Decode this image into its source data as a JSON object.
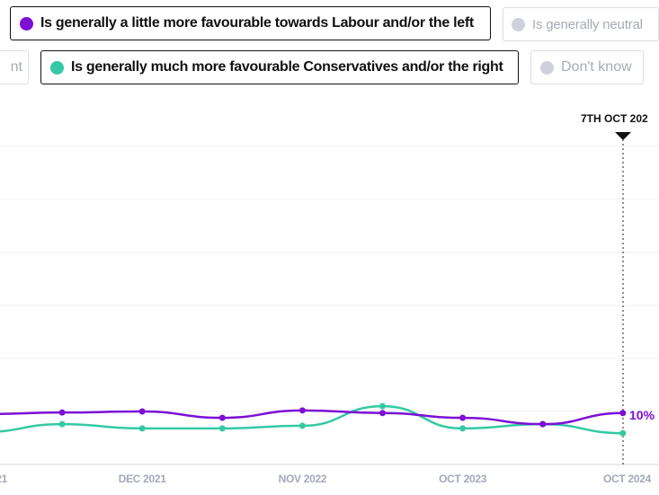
{
  "legend": [
    {
      "label": "Is generally a little more favourable towards Labour and/or the left",
      "color": "#7b0fd6",
      "active": true
    },
    {
      "label": "Is generally neutral",
      "color": "#ced1dc",
      "active": false
    },
    {
      "label": "nt",
      "color": "#ced1dc",
      "active": false
    },
    {
      "label": "Is generally much more favourable Conservatives and/or the right",
      "color": "#34c9a4",
      "active": true
    },
    {
      "label": "Don't know",
      "color": "#ced1dc",
      "active": false
    }
  ],
  "marker": {
    "label": "7TH OCT 202"
  },
  "chart_data": {
    "type": "line",
    "x_ticks": [
      "21",
      "DEC 2021",
      "NOV 2022",
      "OCT 2023",
      "OCT 2024"
    ],
    "ylim": [
      0,
      60
    ],
    "grid": true,
    "series": [
      {
        "name": "Is generally a little more favourable towards Labour and/or the left",
        "color": "#7b0fd6",
        "values": [
          9.5,
          9.8,
          10,
          8.8,
          10.2,
          9.7,
          8.8,
          7.6,
          9.7
        ],
        "end_label": "10%"
      },
      {
        "name": "Is generally much more favourable Conservatives and/or the right",
        "color": "#34c9a4",
        "values": [
          6.1,
          7.6,
          6.8,
          6.8,
          7.3,
          11,
          6.8,
          7.6,
          5.9
        ]
      }
    ]
  }
}
